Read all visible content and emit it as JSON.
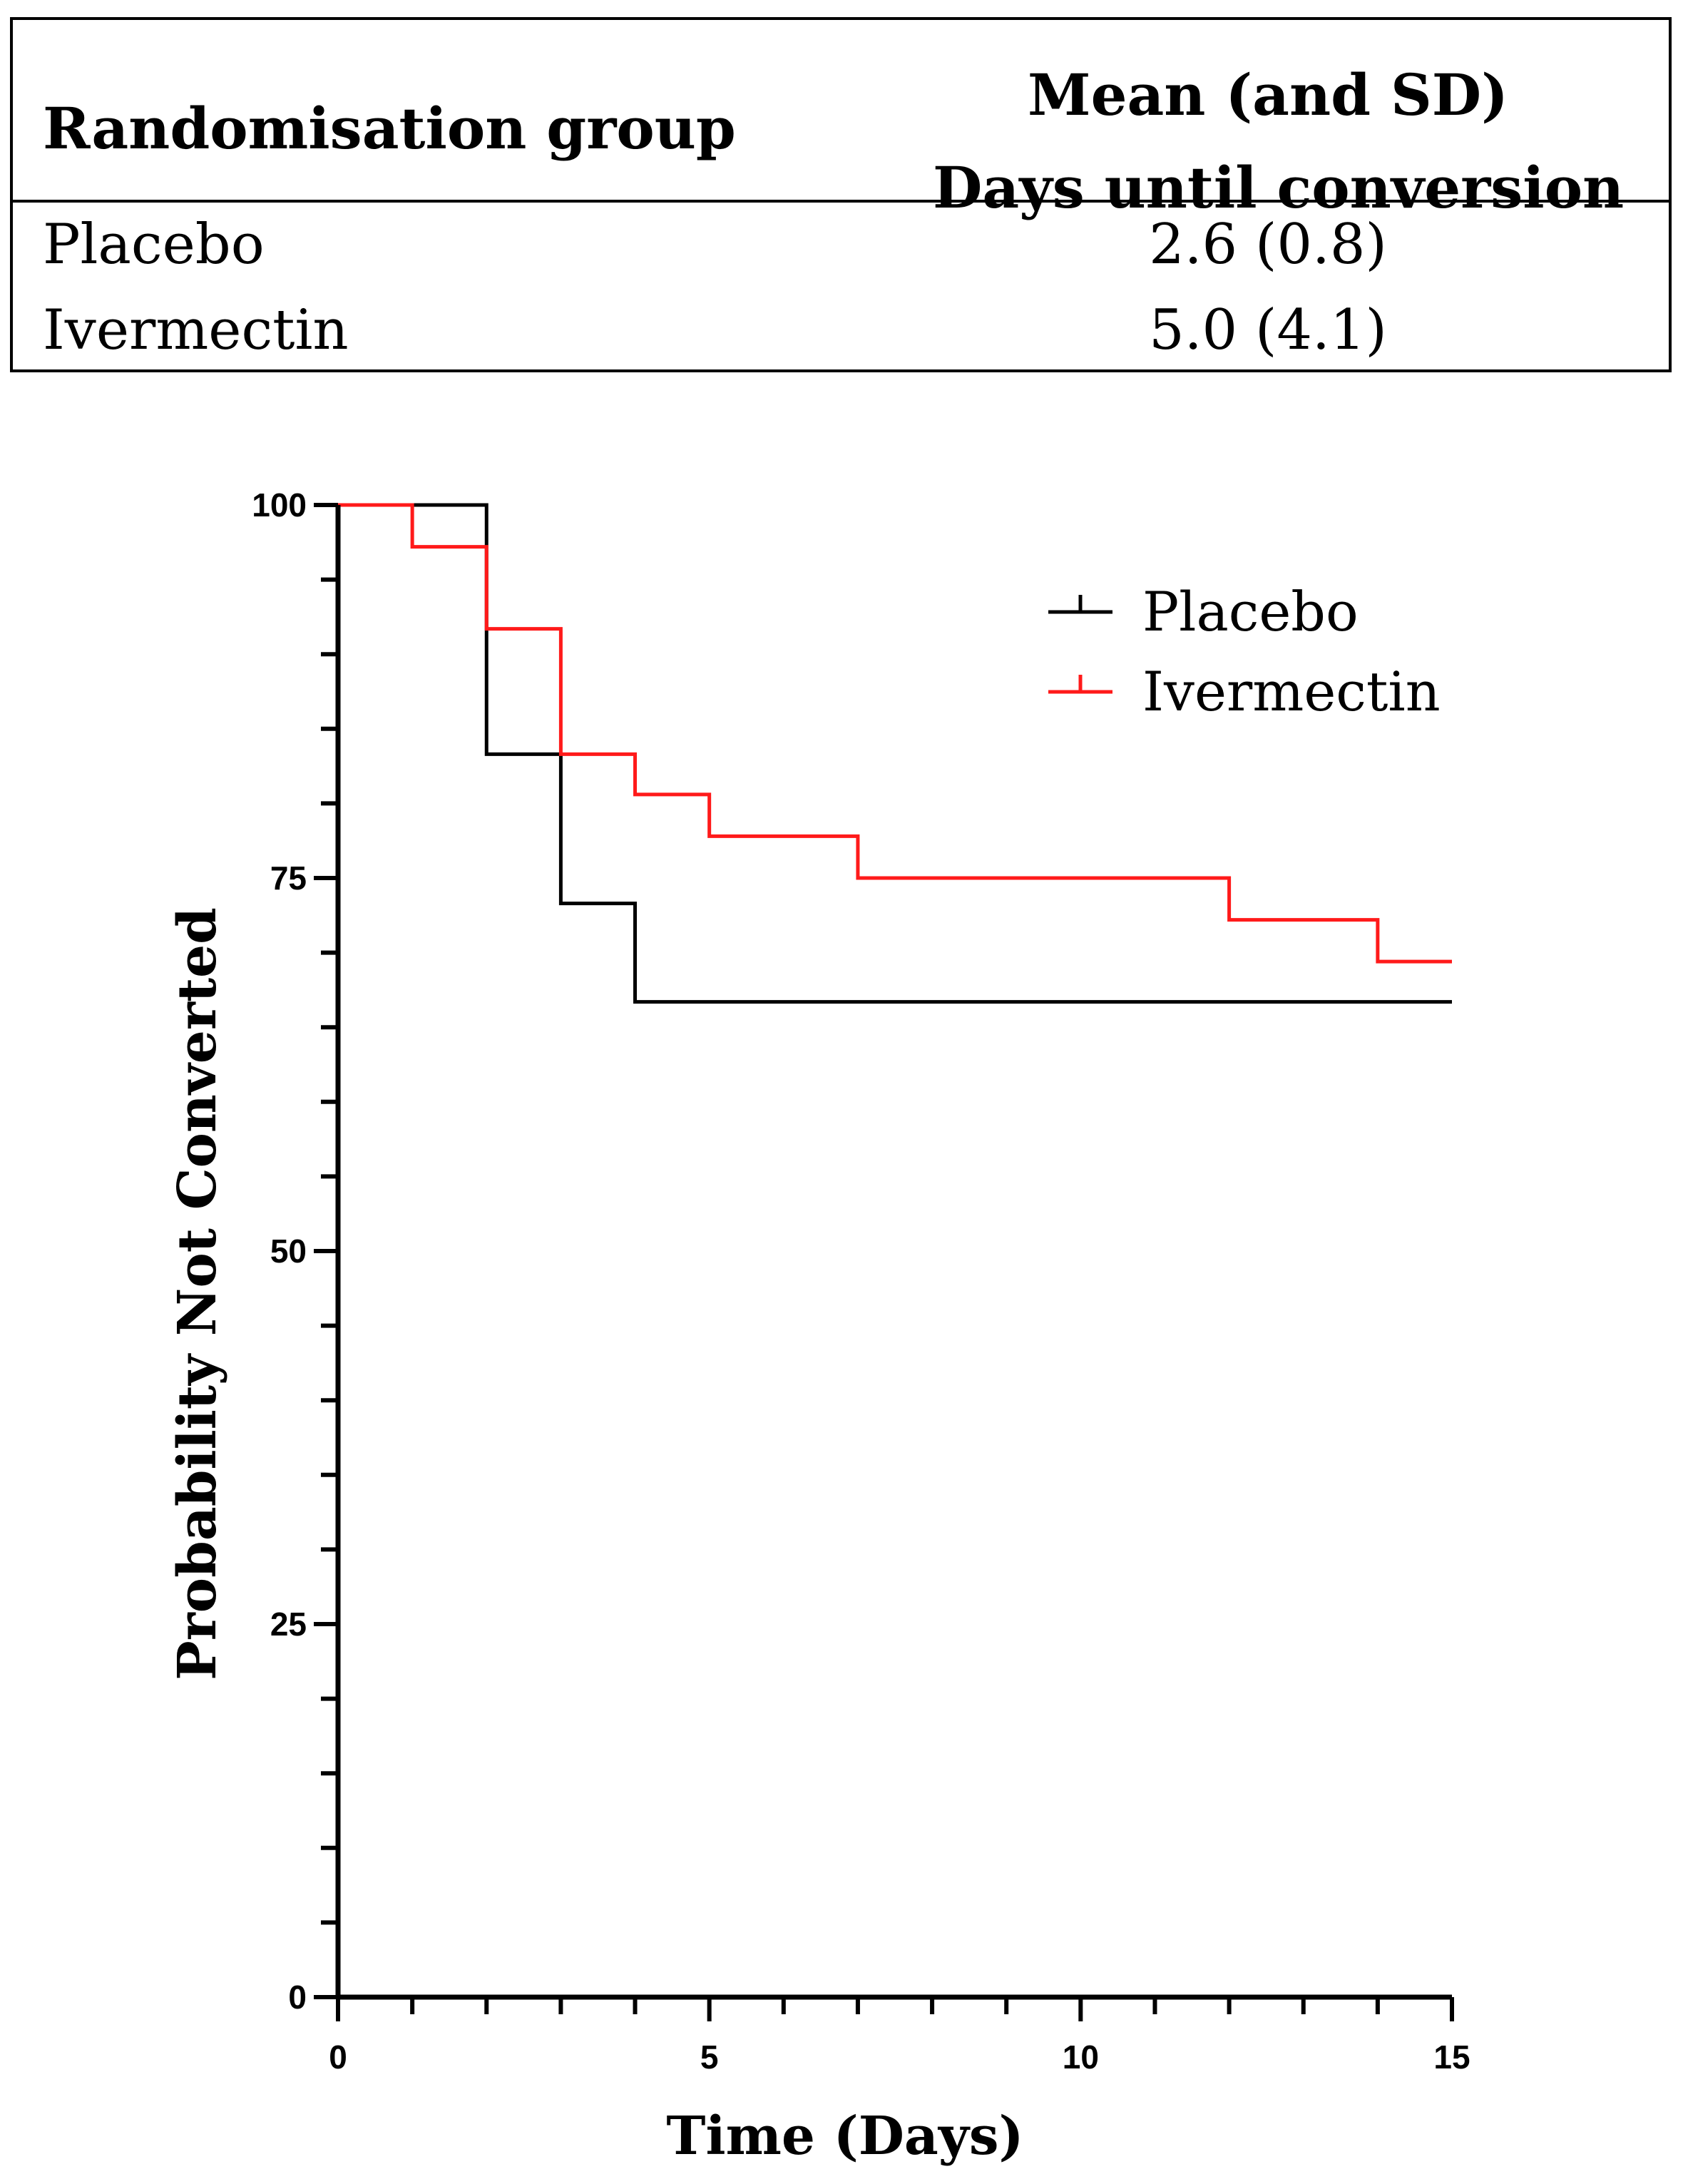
{
  "table": {
    "header_group": "Randomisation group",
    "header_stat_line1": "Mean (and SD)",
    "header_stat_line2": "Days until conversion",
    "rows": [
      {
        "group": "Placebo",
        "value": "2.6 (0.8)"
      },
      {
        "group": "Ivermectin",
        "value": "5.0 (4.1)"
      }
    ]
  },
  "chart_data": {
    "type": "line",
    "subtype": "kaplan-meier-step",
    "title": "",
    "xlabel": "Time (Days)",
    "ylabel": "Probability Not Converted",
    "xlim": [
      0,
      15
    ],
    "ylim": [
      0,
      100
    ],
    "x_major_ticks": [
      0,
      5,
      10,
      15
    ],
    "x_minor_step": 1,
    "y_major_ticks": [
      0,
      25,
      50,
      75,
      100
    ],
    "y_minor_step": 5,
    "legend_position": "top-right",
    "grid": false,
    "series": [
      {
        "name": "Placebo",
        "color": "#000000",
        "x": [
          0,
          2,
          3,
          4,
          15
        ],
        "y": [
          100,
          83.3,
          73.3,
          66.7,
          66.7
        ]
      },
      {
        "name": "Ivermectin",
        "color": "#ff1a1a",
        "x": [
          0,
          1,
          2,
          3,
          4,
          5,
          7,
          12,
          14,
          15
        ],
        "y": [
          100,
          97.2,
          91.7,
          83.3,
          80.6,
          77.8,
          75,
          72.2,
          69.4,
          69.4
        ]
      }
    ]
  }
}
